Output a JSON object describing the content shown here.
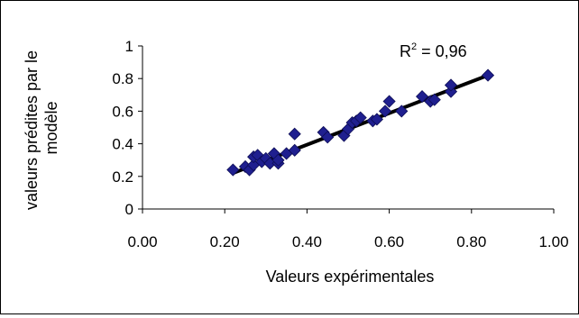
{
  "chart_data": {
    "type": "scatter",
    "title": "",
    "xlabel": "Valeurs expérimentales",
    "ylabel_lines": [
      "valeurs prédites par le",
      "modèle"
    ],
    "xlim": [
      0,
      1
    ],
    "ylim": [
      0,
      1
    ],
    "x_ticks": [
      0,
      0.2,
      0.4,
      0.6,
      0.8,
      1.0
    ],
    "x_tick_labels": [
      "0.00",
      "0.20",
      "0.40",
      "0.60",
      "0.80",
      "1.00"
    ],
    "y_ticks": [
      0,
      0.2,
      0.4,
      0.6,
      0.8,
      1
    ],
    "y_tick_labels": [
      "0",
      "0.2",
      "0.4",
      "0.6",
      "0.8",
      "1"
    ],
    "grid": false,
    "legend": "none",
    "marker": "diamond",
    "marker_color": "#1f1f8f",
    "trendline": {
      "x": [
        0.22,
        0.84
      ],
      "y": [
        0.22,
        0.82
      ],
      "color": "#000000"
    },
    "annotation": {
      "base": "R",
      "superscript": "2",
      "rest": " = 0,96"
    },
    "x": [
      0.22,
      0.25,
      0.26,
      0.27,
      0.27,
      0.28,
      0.29,
      0.3,
      0.31,
      0.32,
      0.33,
      0.33,
      0.35,
      0.37,
      0.37,
      0.44,
      0.45,
      0.49,
      0.5,
      0.51,
      0.52,
      0.53,
      0.56,
      0.57,
      0.59,
      0.6,
      0.63,
      0.68,
      0.7,
      0.71,
      0.75,
      0.75,
      0.84
    ],
    "y": [
      0.24,
      0.26,
      0.24,
      0.27,
      0.32,
      0.33,
      0.29,
      0.31,
      0.28,
      0.34,
      0.28,
      0.3,
      0.34,
      0.36,
      0.46,
      0.47,
      0.44,
      0.45,
      0.49,
      0.53,
      0.54,
      0.56,
      0.54,
      0.55,
      0.6,
      0.66,
      0.6,
      0.69,
      0.66,
      0.67,
      0.72,
      0.76,
      0.82
    ]
  }
}
